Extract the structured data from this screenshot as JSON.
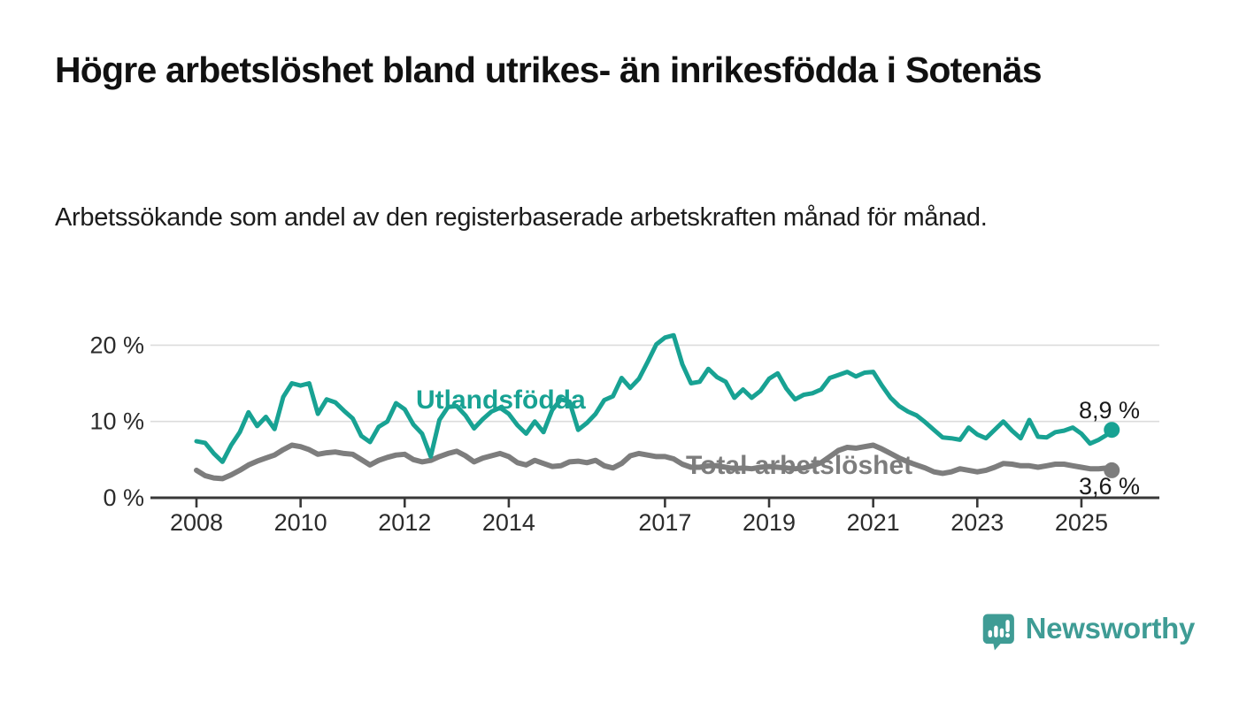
{
  "title": "Högre arbetslöshet bland utrikes- än inrikesfödda i Sotenäs",
  "subtitle": "Arbetssökande som andel av den registerbaserade arbetskraften månad för månad.",
  "branding": {
    "logo_text": "Newsworthy",
    "logo_icon": "bar-chart-speech-bubble-icon",
    "brand_color": "#3f9c95"
  },
  "colors": {
    "series_foreign_born": "#18a293",
    "series_total": "#7d7d7d",
    "grid": "#dcdcdc",
    "axis": "#333333",
    "text": "#1a1a1a"
  },
  "chart_data": {
    "type": "line",
    "grid": "horizontal-only",
    "legend_position": "inline-labels",
    "x_axis": {
      "unit": "year",
      "range": [
        2007.1,
        2026.5
      ],
      "ticks": [
        2008,
        2010,
        2012,
        2014,
        2017,
        2019,
        2021,
        2023,
        2025
      ],
      "tick_labels": [
        "2008",
        "2010",
        "2012",
        "2014",
        "2017",
        "2019",
        "2021",
        "2023",
        "2025"
      ]
    },
    "y_axis": {
      "unit": "%",
      "range": [
        0,
        21.8
      ],
      "ticks": [
        0,
        10,
        20
      ],
      "tick_labels": [
        "0 %",
        "10 %",
        "20 %"
      ]
    },
    "sampling": {
      "x_start": 2008.0,
      "x_step_years": 0.166667,
      "x_end": 2025.583,
      "note": "monthly data shown, digitized at ~2-month resolution"
    },
    "series": [
      {
        "name": "Utlandsfödda",
        "color": "#18a293",
        "end_label": "8,9 %",
        "end_value": 8.9,
        "values": [
          7.4,
          7.2,
          5.8,
          4.7,
          6.9,
          8.6,
          11.2,
          9.4,
          10.6,
          9.0,
          13.2,
          15.0,
          14.7,
          15.0,
          11.0,
          12.9,
          12.5,
          11.4,
          10.4,
          8.1,
          7.3,
          9.3,
          10.0,
          12.4,
          11.6,
          9.6,
          8.4,
          5.4,
          10.2,
          11.9,
          12.0,
          10.8,
          9.1,
          10.3,
          11.3,
          11.8,
          11.0,
          9.5,
          8.4,
          10.0,
          8.6,
          11.5,
          12.9,
          12.6,
          8.9,
          9.8,
          11.0,
          12.8,
          13.3,
          15.7,
          14.4,
          15.6,
          17.8,
          20.1,
          21.0,
          21.3,
          17.5,
          15.0,
          15.2,
          16.9,
          15.8,
          15.2,
          13.1,
          14.2,
          13.1,
          14.0,
          15.6,
          16.3,
          14.3,
          12.9,
          13.5,
          13.7,
          14.2,
          15.7,
          16.1,
          16.5,
          15.9,
          16.4,
          16.5,
          14.7,
          13.1,
          12.0,
          11.3,
          10.8,
          9.9,
          8.9,
          7.9,
          7.8,
          7.6,
          9.2,
          8.3,
          7.8,
          8.9,
          10.0,
          8.8,
          7.8,
          10.2,
          8.0,
          7.9,
          8.6,
          8.8,
          9.2,
          8.4,
          7.1,
          7.6,
          8.3,
          8.9
        ]
      },
      {
        "name": "Total arbetslöshet",
        "color": "#7d7d7d",
        "end_label": "3,6 %",
        "end_value": 3.6,
        "values": [
          3.6,
          2.9,
          2.6,
          2.5,
          3.0,
          3.6,
          4.3,
          4.8,
          5.2,
          5.6,
          6.3,
          6.9,
          6.7,
          6.3,
          5.7,
          5.9,
          6.0,
          5.8,
          5.7,
          5.0,
          4.3,
          4.9,
          5.3,
          5.6,
          5.7,
          5.0,
          4.7,
          4.9,
          5.4,
          5.8,
          6.1,
          5.5,
          4.7,
          5.2,
          5.5,
          5.8,
          5.4,
          4.6,
          4.3,
          4.9,
          4.5,
          4.1,
          4.2,
          4.7,
          4.8,
          4.6,
          4.9,
          4.2,
          3.9,
          4.5,
          5.5,
          5.8,
          5.6,
          5.4,
          5.4,
          5.1,
          4.4,
          4.0,
          4.0,
          4.2,
          4.2,
          4.0,
          3.8,
          3.9,
          3.8,
          4.0,
          4.1,
          4.0,
          3.9,
          3.8,
          3.9,
          4.2,
          4.6,
          5.4,
          6.2,
          6.6,
          6.5,
          6.7,
          6.9,
          6.4,
          5.8,
          5.2,
          4.7,
          4.3,
          3.9,
          3.4,
          3.2,
          3.4,
          3.8,
          3.6,
          3.4,
          3.6,
          4.0,
          4.5,
          4.4,
          4.2,
          4.2,
          4.0,
          4.2,
          4.4,
          4.4,
          4.2,
          4.0,
          3.8,
          3.8,
          3.9,
          3.6
        ]
      }
    ]
  }
}
